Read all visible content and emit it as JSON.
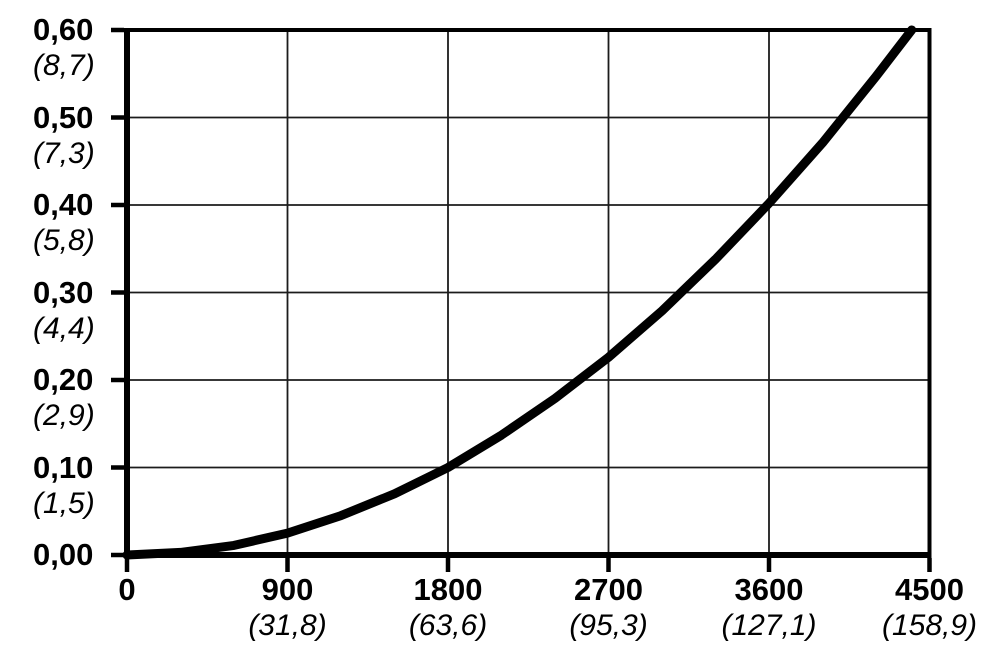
{
  "chart": {
    "background": "#ffffff",
    "curve_color": "#000000",
    "grid_color": "#1c1c1c",
    "axis_color": "#000000"
  },
  "chart_data": {
    "type": "line",
    "title": "",
    "xlabel": "",
    "ylabel": "",
    "grid": true,
    "legend": "none",
    "x_axis": {
      "min": 0,
      "max": 4500,
      "ticks": [
        {
          "value": 0,
          "label": "0",
          "secondary": ""
        },
        {
          "value": 900,
          "label": "900",
          "secondary": "(31,8)"
        },
        {
          "value": 1800,
          "label": "1800",
          "secondary": "(63,6)"
        },
        {
          "value": 2700,
          "label": "2700",
          "secondary": "(95,3)"
        },
        {
          "value": 3600,
          "label": "3600",
          "secondary": "(127,1)"
        },
        {
          "value": 4500,
          "label": "4500",
          "secondary": "(158,9)"
        }
      ]
    },
    "y_axis": {
      "min": 0,
      "max": 0.6,
      "ticks": [
        {
          "value": 0.6,
          "label": "0,60",
          "secondary": "(8,7)"
        },
        {
          "value": 0.5,
          "label": "0,50",
          "secondary": "(7,3)"
        },
        {
          "value": 0.4,
          "label": "0,40",
          "secondary": "(5,8)"
        },
        {
          "value": 0.3,
          "label": "0,30",
          "secondary": "(4,4)"
        },
        {
          "value": 0.2,
          "label": "0,20",
          "secondary": "(2,9)"
        },
        {
          "value": 0.1,
          "label": "0,10",
          "secondary": "(1,5)"
        },
        {
          "value": 0.0,
          "label": "0,00",
          "secondary": ""
        }
      ]
    },
    "series": [
      {
        "name": "curve",
        "points": [
          [
            0,
            0.0
          ],
          [
            300,
            0.003
          ],
          [
            600,
            0.011
          ],
          [
            900,
            0.025
          ],
          [
            1200,
            0.045
          ],
          [
            1500,
            0.07
          ],
          [
            1800,
            0.1
          ],
          [
            2100,
            0.137
          ],
          [
            2400,
            0.179
          ],
          [
            2700,
            0.226
          ],
          [
            3000,
            0.279
          ],
          [
            3300,
            0.338
          ],
          [
            3600,
            0.402
          ],
          [
            3900,
            0.471
          ],
          [
            4200,
            0.547
          ],
          [
            4400,
            0.6
          ]
        ]
      }
    ]
  }
}
